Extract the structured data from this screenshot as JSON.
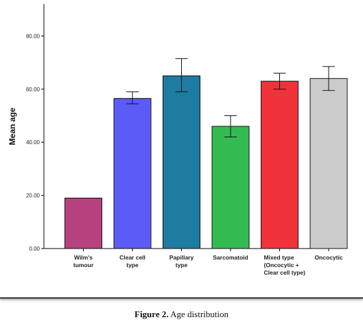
{
  "chart_data": {
    "type": "bar",
    "ylabel": "Mean age",
    "xlabel": "",
    "ylim": [
      0,
      92
    ],
    "yticks": [
      0,
      20,
      40,
      60,
      80
    ],
    "ytick_labels": [
      "0.00",
      "20.00",
      "40.00",
      "60.00",
      "80.00"
    ],
    "grid": false,
    "categories": [
      [
        "Wilm's",
        "tumour"
      ],
      [
        "Clear cell",
        "type"
      ],
      [
        "Papillary",
        "type"
      ],
      [
        "Sarcomatoid"
      ],
      [
        "Mixed type",
        "(Oncocytic +",
        "Clear cell type)"
      ],
      [
        "Oncocytic"
      ]
    ],
    "values": [
      19,
      56.5,
      65,
      46,
      63,
      64
    ],
    "error_bars": [
      null,
      [
        54.5,
        59
      ],
      [
        59,
        71.5
      ],
      [
        42,
        50
      ],
      [
        60,
        66
      ],
      [
        59.5,
        68.5
      ]
    ],
    "colors": [
      "#b8417f",
      "#5b5cf5",
      "#1e7ba1",
      "#33bb52",
      "#f0323a",
      "#cbcbcb"
    ]
  },
  "caption": {
    "label": "Figure 2.",
    "text": " Age distribution"
  }
}
